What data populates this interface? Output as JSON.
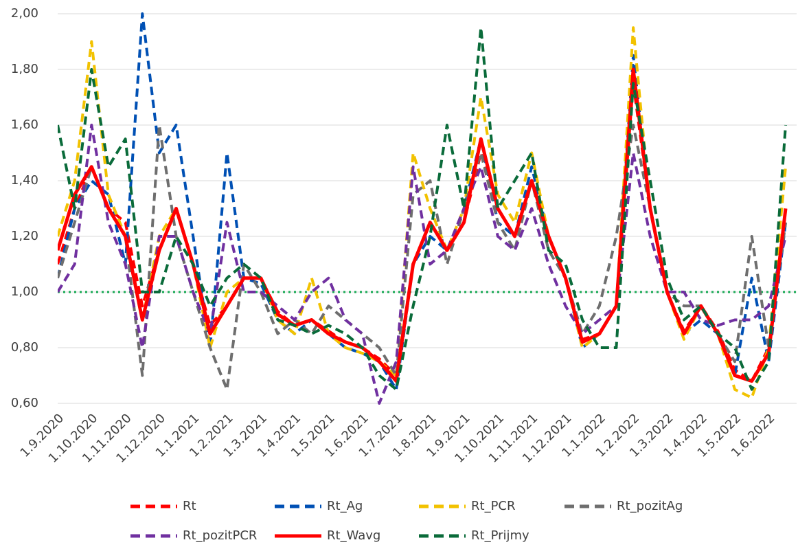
{
  "chart_data": {
    "type": "line",
    "categories": [
      "1.9.2020",
      null,
      "1.10.2020",
      null,
      "1.11.2020",
      null,
      "1.12.2020",
      null,
      "1.1.2021",
      null,
      "1.2.2021",
      null,
      "1.3.2021",
      null,
      "1.4.2021",
      null,
      "1.5.2021",
      null,
      "1.6.2021",
      null,
      "1.7.2021",
      null,
      "1.8.2021",
      null,
      "1.9.2021",
      null,
      "1.10.2021",
      null,
      "1.11.2021",
      null,
      "1.12.2021",
      null,
      "1.1.2022",
      null,
      "1.2.2022",
      null,
      "1.3.2022",
      null,
      "1.4.2022",
      null,
      "1.5.2022",
      null,
      "1.6.2022",
      null
    ],
    "ylim": [
      0.6,
      2.0
    ],
    "yticks": [
      {
        "value": 0.6,
        "label": "0,60"
      },
      {
        "value": 0.8,
        "label": "0,80"
      },
      {
        "value": 1.0,
        "label": "1,00"
      },
      {
        "value": 1.2,
        "label": "1,20"
      },
      {
        "value": 1.4,
        "label": "1,40"
      },
      {
        "value": 1.6,
        "label": "1,60"
      },
      {
        "value": 1.8,
        "label": "1,80"
      },
      {
        "value": 2.0,
        "label": "2,00"
      }
    ],
    "grid": true,
    "reference_line": {
      "value": 1.0,
      "color": "#1aaa55"
    },
    "legend": "bottom",
    "series": [
      {
        "name": "Rt",
        "color": "#ff0000",
        "dashed": true,
        "values": [
          1.1,
          1.3,
          1.45,
          1.3,
          1.25,
          0.95,
          1.15,
          1.3,
          1.1,
          0.88,
          0.95,
          1.05,
          1.05,
          0.93,
          0.88,
          0.9,
          0.86,
          0.82,
          0.8,
          0.76,
          0.7,
          1.1,
          1.25,
          1.15,
          1.25,
          1.5,
          1.3,
          1.2,
          1.4,
          1.2,
          1.05,
          0.83,
          0.85,
          0.95,
          1.75,
          1.3,
          1.0,
          0.86,
          0.95,
          0.86,
          0.72,
          0.68,
          0.8,
          1.3
        ]
      },
      {
        "name": "Rt_Ag",
        "color": "#0050b4",
        "dashed": true,
        "values": [
          1.05,
          1.3,
          1.4,
          1.35,
          1.1,
          2.0,
          1.5,
          1.6,
          1.2,
          0.8,
          1.5,
          1.05,
          1.03,
          0.9,
          0.85,
          0.9,
          0.85,
          0.8,
          0.78,
          0.75,
          0.65,
          1.1,
          1.2,
          1.15,
          1.3,
          1.55,
          1.25,
          1.2,
          1.45,
          1.2,
          1.05,
          0.8,
          0.85,
          0.95,
          1.85,
          1.3,
          1.0,
          0.85,
          0.9,
          0.85,
          0.7,
          1.05,
          0.75,
          1.25
        ]
      },
      {
        "name": "Rt_PCR",
        "color": "#f2c200",
        "dashed": true,
        "values": [
          1.2,
          1.4,
          1.9,
          1.35,
          1.2,
          0.9,
          1.2,
          1.3,
          1.1,
          0.8,
          1.0,
          1.05,
          1.05,
          0.9,
          0.85,
          1.05,
          0.85,
          0.8,
          0.78,
          0.75,
          0.7,
          1.5,
          1.3,
          1.15,
          1.3,
          1.7,
          1.35,
          1.25,
          1.5,
          1.2,
          1.05,
          0.8,
          0.85,
          0.95,
          1.95,
          1.3,
          1.0,
          0.83,
          0.95,
          0.85,
          0.65,
          0.62,
          0.8,
          1.45
        ]
      },
      {
        "name": "Rt_pozitAg",
        "color": "#6e6e6e",
        "dashed": true,
        "values": [
          1.05,
          1.25,
          1.45,
          1.3,
          1.2,
          0.7,
          1.6,
          1.2,
          1.0,
          0.8,
          0.65,
          1.1,
          1.0,
          0.85,
          0.9,
          0.85,
          0.95,
          0.9,
          0.85,
          0.8,
          0.7,
          1.35,
          1.4,
          1.1,
          1.3,
          1.5,
          1.25,
          1.15,
          1.4,
          1.15,
          1.05,
          0.85,
          0.95,
          1.2,
          1.6,
          1.3,
          1.0,
          0.95,
          0.95,
          0.85,
          0.75,
          1.2,
          0.8,
          1.25
        ]
      },
      {
        "name": "Rt_pozitPCR",
        "color": "#7030a0",
        "dashed": true,
        "values": [
          1.0,
          1.1,
          1.6,
          1.25,
          1.1,
          0.8,
          1.2,
          1.2,
          1.0,
          0.85,
          1.25,
          1.0,
          1.0,
          0.95,
          0.9,
          1.0,
          1.05,
          0.9,
          0.85,
          0.6,
          0.75,
          1.45,
          1.1,
          1.15,
          1.3,
          1.45,
          1.2,
          1.15,
          1.3,
          1.1,
          0.95,
          0.85,
          0.9,
          0.95,
          1.5,
          1.2,
          1.0,
          1.0,
          0.9,
          0.88,
          0.9,
          0.9,
          0.95,
          1.2
        ]
      },
      {
        "name": "Rt_Wavg",
        "color": "#ff0000",
        "dashed": false,
        "values": [
          1.15,
          1.35,
          1.45,
          1.3,
          1.2,
          0.9,
          1.15,
          1.3,
          1.1,
          0.85,
          0.95,
          1.05,
          1.05,
          0.92,
          0.88,
          0.9,
          0.85,
          0.82,
          0.8,
          0.75,
          0.68,
          1.1,
          1.25,
          1.15,
          1.25,
          1.55,
          1.3,
          1.2,
          1.4,
          1.2,
          1.05,
          0.82,
          0.85,
          0.95,
          1.8,
          1.3,
          1.0,
          0.85,
          0.95,
          0.85,
          0.7,
          0.68,
          0.78,
          1.3
        ]
      },
      {
        "name": "Rt_Prijmy",
        "color": "#0a6b3a",
        "dashed": true,
        "values": [
          1.6,
          1.3,
          1.8,
          1.45,
          1.55,
          1.0,
          1.0,
          1.2,
          1.1,
          0.95,
          1.05,
          1.1,
          1.05,
          0.9,
          0.88,
          0.85,
          0.88,
          0.85,
          0.8,
          0.7,
          0.65,
          0.95,
          1.2,
          1.6,
          1.3,
          1.95,
          1.3,
          1.4,
          1.5,
          1.15,
          1.1,
          0.9,
          0.8,
          0.8,
          1.75,
          1.4,
          1.05,
          0.9,
          0.95,
          0.85,
          0.8,
          0.65,
          0.75,
          1.6
        ]
      }
    ]
  }
}
